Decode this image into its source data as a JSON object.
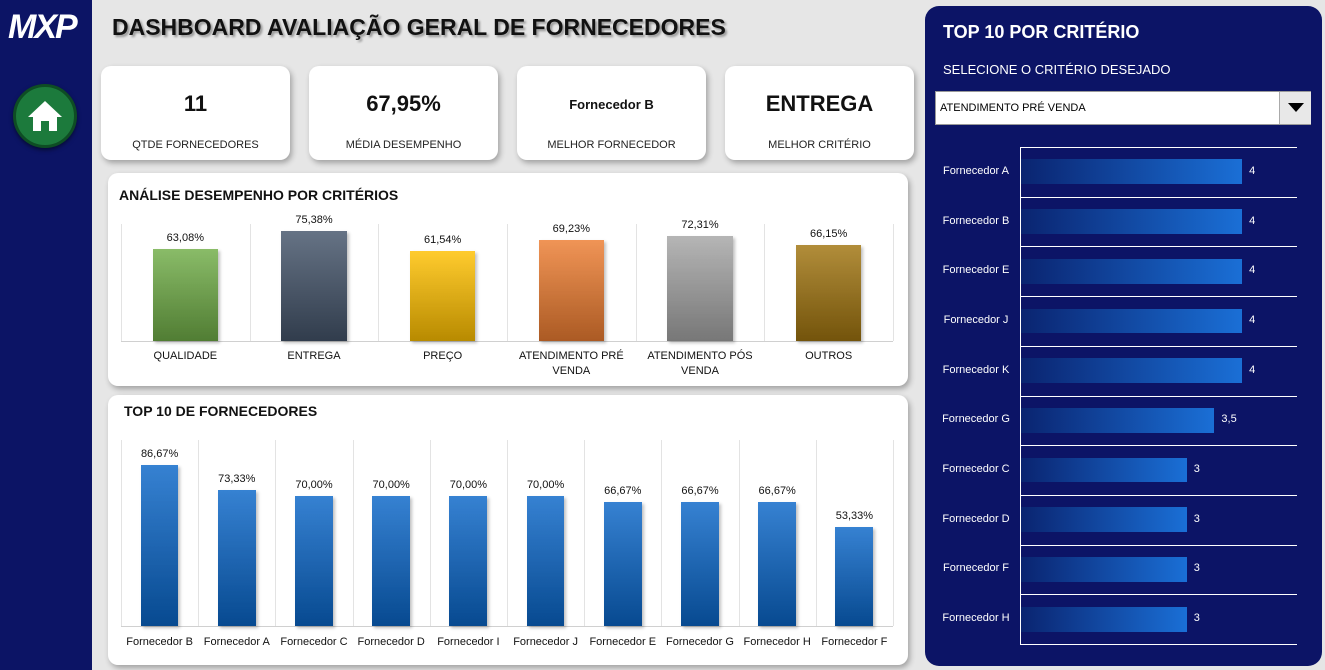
{
  "sidebar": {
    "logo": "MXP"
  },
  "header": {
    "title": "DASHBOARD AVALIAÇÃO GERAL DE FORNECEDORES"
  },
  "kpis": [
    {
      "value": "11",
      "label": "QTDE FORNECEDORES"
    },
    {
      "value": "67,95%",
      "label": "MÉDIA DESEMPENHO"
    },
    {
      "value": "Fornecedor B",
      "label": "MELHOR FORNECEDOR"
    },
    {
      "value": "ENTREGA",
      "label": "MELHOR CRITÉRIO"
    }
  ],
  "panel": {
    "title": "TOP 10 POR CRITÉRIO",
    "prompt": "SELECIONE O CRITÉRIO DESEJADO",
    "selected": "ATENDIMENTO PRÉ VENDA"
  },
  "chart_data": [
    {
      "type": "bar",
      "title": "ANÁLISE DESEMPENHO POR CRITÉRIOS",
      "categories": [
        "QUALIDADE",
        "ENTREGA",
        "PREÇO",
        "ATENDIMENTO PRÉ VENDA",
        "ATENDIMENTO PÓS VENDA",
        "OUTROS"
      ],
      "values": [
        63.08,
        75.38,
        61.54,
        69.23,
        72.31,
        66.15
      ],
      "value_labels": [
        "63,08%",
        "75,38%",
        "61,54%",
        "69,23%",
        "72,31%",
        "66,15%"
      ],
      "colors": [
        "#70ad47",
        "#44546a",
        "#ffc000",
        "#ed7d31",
        "#a5a5a5",
        "#a0740f"
      ]
    },
    {
      "type": "bar",
      "title": "TOP 10 DE FORNECEDORES",
      "categories": [
        "Fornecedor B",
        "Fornecedor A",
        "Fornecedor C",
        "Fornecedor D",
        "Fornecedor I",
        "Fornecedor J",
        "Fornecedor E",
        "Fornecedor G",
        "Fornecedor H",
        "Fornecedor F"
      ],
      "values": [
        86.67,
        73.33,
        70,
        70,
        70,
        70,
        66.67,
        66.67,
        66.67,
        53.33
      ],
      "value_labels": [
        "86,67%",
        "73,33%",
        "70,00%",
        "70,00%",
        "70,00%",
        "70,00%",
        "66,67%",
        "66,67%",
        "66,67%",
        "53,33%"
      ],
      "color": "#0a66c8"
    },
    {
      "type": "hbar",
      "categories": [
        "Fornecedor A",
        "Fornecedor B",
        "Fornecedor E",
        "Fornecedor J",
        "Fornecedor K",
        "Fornecedor G",
        "Fornecedor C",
        "Fornecedor D",
        "Fornecedor F",
        "Fornecedor H"
      ],
      "values": [
        4,
        4,
        4,
        4,
        4,
        3.5,
        3,
        3,
        3,
        3
      ],
      "value_labels": [
        "4",
        "4",
        "4",
        "4",
        "4",
        "3,5",
        "3",
        "3",
        "3",
        "3"
      ],
      "color": "#1a6fd6"
    }
  ]
}
